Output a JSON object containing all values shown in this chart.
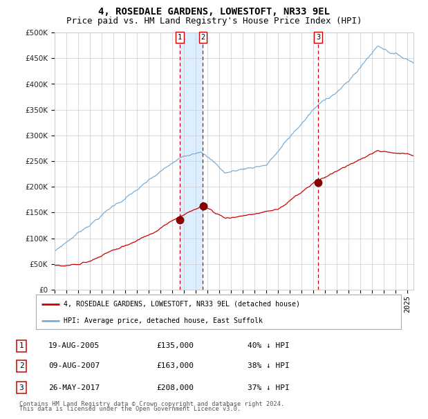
{
  "title": "4, ROSEDALE GARDENS, LOWESTOFT, NR33 9EL",
  "subtitle": "Price paid vs. HM Land Registry's House Price Index (HPI)",
  "legend_label_red": "4, ROSEDALE GARDENS, LOWESTOFT, NR33 9EL (detached house)",
  "legend_label_blue": "HPI: Average price, detached house, East Suffolk",
  "footer_line1": "Contains HM Land Registry data © Crown copyright and database right 2024.",
  "footer_line2": "This data is licensed under the Open Government Licence v3.0.",
  "transactions": [
    {
      "num": 1,
      "date": "19-AUG-2005",
      "price": 135000,
      "hpi_pct": "40% ↓ HPI"
    },
    {
      "num": 2,
      "date": "09-AUG-2007",
      "price": 163000,
      "hpi_pct": "38% ↓ HPI"
    },
    {
      "num": 3,
      "date": "26-MAY-2017",
      "price": 208000,
      "hpi_pct": "37% ↓ HPI"
    }
  ],
  "vline1_x": 2005.63,
  "vline2_x": 2007.6,
  "vline3_x": 2017.4,
  "shade_x_start": 2005.63,
  "shade_x_end": 2007.6,
  "red_color": "#cc0000",
  "blue_color": "#7aaed6",
  "shade_color": "#ddeeff",
  "grid_color": "#cccccc",
  "background_color": "#ffffff",
  "title_fontsize": 10,
  "subtitle_fontsize": 9,
  "tick_fontsize": 7.5,
  "ylim": [
    0,
    500000
  ],
  "xlim_start": 1995.0,
  "xlim_end": 2025.5
}
